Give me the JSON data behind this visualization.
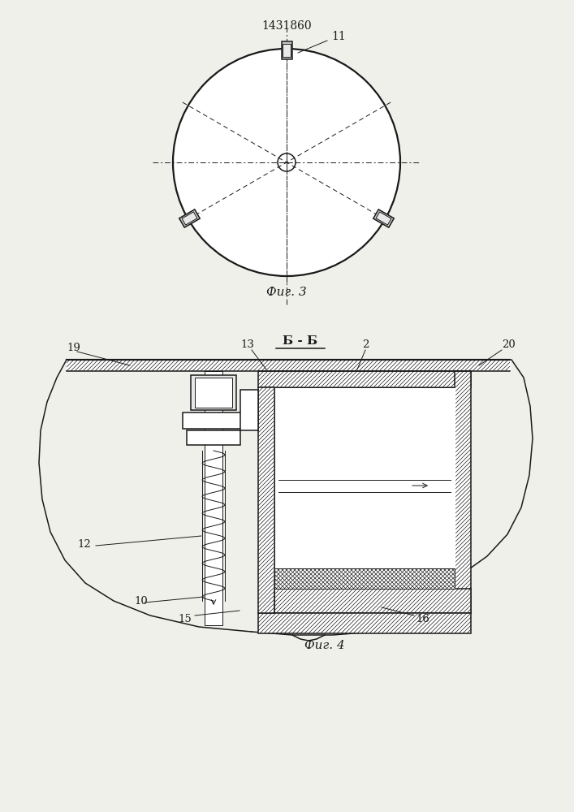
{
  "patent_number": "1431860",
  "fig3_caption": "Фиг. 3",
  "fig4_caption": "Фиг. 4",
  "fig4_label": "Б - Б",
  "label_11": "11",
  "label_2": "2",
  "label_19": "19",
  "label_20": "20",
  "label_13": "13",
  "label_12": "12",
  "label_10": "10",
  "label_15": "15",
  "label_16": "16",
  "bg_color": "#f0f0eb",
  "line_color": "#1a1a1a"
}
